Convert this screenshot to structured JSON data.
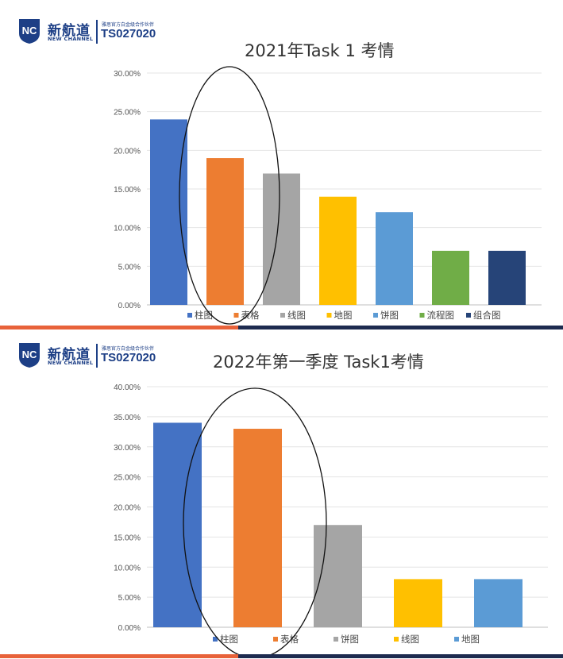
{
  "logo": {
    "brand_cn": "新航道",
    "brand_en": "NEW CHANNEL",
    "tagline": "雅思官方白金级合作伙伴",
    "code": "TS027020",
    "colors": {
      "navy": "#1d3f86",
      "shield": "#1d3f86"
    }
  },
  "chart_data": [
    {
      "type": "bar",
      "title": "2021年Task  1  考情",
      "categories": [
        "柱图",
        "表格",
        "线图",
        "地图",
        "饼图",
        "流程图",
        "组合图"
      ],
      "values": [
        24,
        19,
        17,
        14,
        12,
        7,
        7
      ],
      "colors": [
        "#4472c4",
        "#ed7d31",
        "#a5a5a5",
        "#ffc000",
        "#5b9bd5",
        "#70ad47",
        "#264478"
      ],
      "ylim": [
        0,
        30
      ],
      "yticks": [
        "0.00%",
        "5.00%",
        "10.00%",
        "15.00%",
        "20.00%",
        "25.00%",
        "30.00%"
      ],
      "grid": true,
      "legend": "bottom",
      "annotation": "ellipse around 柱图 and 表格 bars"
    },
    {
      "type": "bar",
      "title": "2022年第一季度  Task1考情",
      "categories": [
        "柱图",
        "表格",
        "饼图",
        "线图",
        "地图"
      ],
      "values": [
        34,
        33,
        17,
        8,
        8
      ],
      "colors": [
        "#4472c4",
        "#ed7d31",
        "#a5a5a5",
        "#ffc000",
        "#5b9bd5"
      ],
      "ylim": [
        0,
        40
      ],
      "yticks": [
        "0.00%",
        "5.00%",
        "10.00%",
        "15.00%",
        "20.00%",
        "25.00%",
        "30.00%",
        "35.00%",
        "40.00%"
      ],
      "grid": true,
      "legend": "bottom",
      "annotation": "ellipse around 柱图 and 表格 bars"
    }
  ],
  "accent_colors": {
    "divider_orange": "#e8623a",
    "divider_navy": "#1d2b4f"
  }
}
